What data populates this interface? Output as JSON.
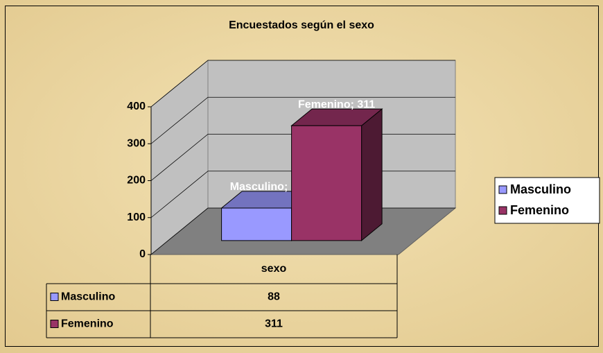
{
  "chart_data": {
    "type": "bar",
    "title": "Encuestados según el sexo",
    "categories": [
      "sexo"
    ],
    "series": [
      {
        "name": "Masculino",
        "color": "#9999ff",
        "values": [
          88
        ],
        "value_labels": [
          "Masculino; 88"
        ]
      },
      {
        "name": "Femenino",
        "color": "#993366",
        "values": [
          311
        ],
        "value_labels": [
          "Femenino; 311"
        ]
      }
    ],
    "ylim": [
      0,
      400
    ],
    "yticks": [
      0,
      100,
      200,
      300,
      400
    ],
    "grid": true,
    "legend": "right",
    "data_table": true
  }
}
